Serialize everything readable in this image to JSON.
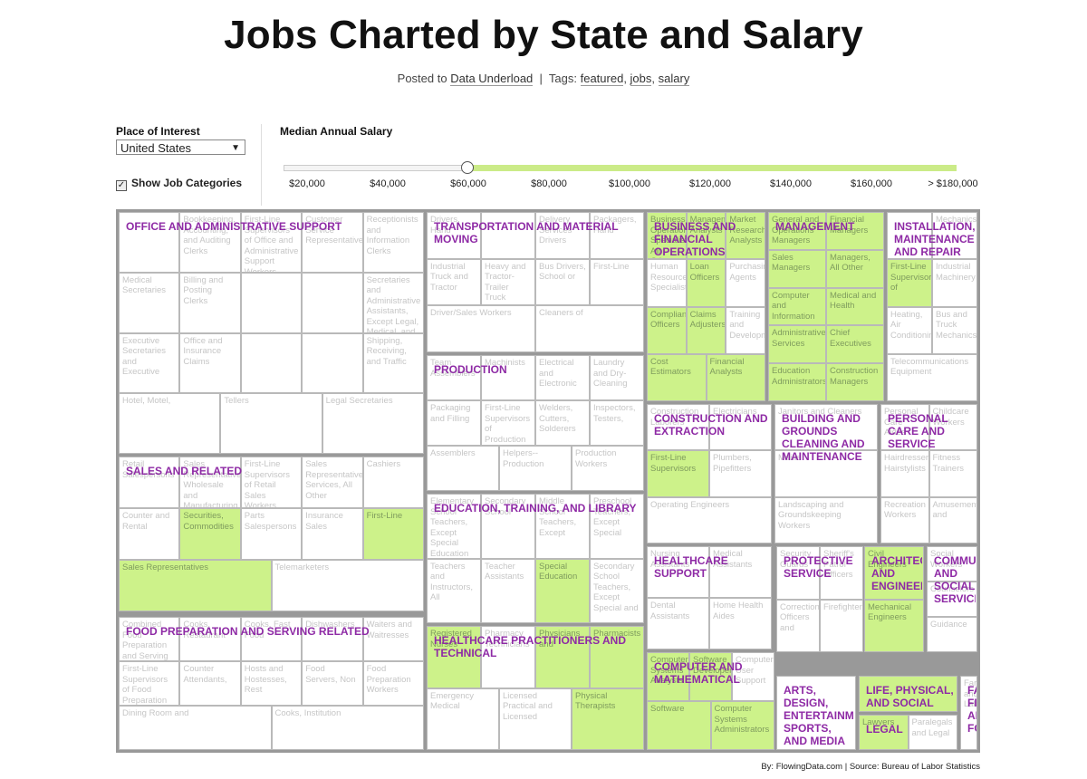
{
  "header": {
    "title": "Jobs Charted by State and Salary",
    "posted_prefix": "Posted to",
    "posted_link": "Data Underload",
    "separator": "|",
    "tags_prefix": "Tags:",
    "tags": [
      "featured",
      "salary"
    ],
    "tag_jobs": "jobs"
  },
  "controls": {
    "place_label": "Place of Interest",
    "place_value": "United States",
    "show_categories_label": "Show Job Categories",
    "show_categories_checked": true,
    "salary_label": "Median Annual Salary",
    "slider_value": 60000,
    "ticks": [
      "$20,000",
      "$40,000",
      "$60,000",
      "$80,000",
      "$100,000",
      "$120,000",
      "$140,000",
      "$160,000",
      "> $180,000"
    ]
  },
  "colors": {
    "highlight": "#cdf28a",
    "category_text": "#8e2aa5",
    "border": "#999999"
  },
  "credit": "By: FlowingData.com | Source: Bureau of Labor Statistics",
  "chart_data": {
    "type": "treemap",
    "categories": [
      {
        "name": "Office and Administrative Support",
        "cells": [
          {
            "label": "",
            "hi": false
          },
          {
            "label": "Bookkeeping, Accounting, and Auditing Clerks",
            "hi": false
          },
          {
            "label": "First-Line Supervisors of Office and Administrative Support Workers",
            "hi": false
          },
          {
            "label": "Customer Service Representatives",
            "hi": false
          },
          {
            "label": "Receptionists and Information Clerks",
            "hi": false
          },
          {
            "label": "Medical Secretaries",
            "hi": false
          },
          {
            "label": "Billing and Posting Clerks",
            "hi": false
          },
          {
            "label": "",
            "hi": false
          },
          {
            "label": "",
            "hi": false
          },
          {
            "label": "Secretaries and Administrative Assistants, Except Legal, Medical, and Executive",
            "hi": false
          },
          {
            "label": "Executive Secretaries and Executive",
            "hi": false
          },
          {
            "label": "Office and Insurance Claims",
            "hi": false
          },
          {
            "label": "",
            "hi": false
          },
          {
            "label": "",
            "hi": false
          },
          {
            "label": "Shipping, Receiving, and Traffic",
            "hi": false
          },
          {
            "label": "Hotel, Motel,",
            "hi": false
          },
          {
            "label": "Tellers",
            "hi": false
          },
          {
            "label": "Legal Secretaries",
            "hi": false
          }
        ]
      },
      {
        "name": "Transportation and Material Moving",
        "cells": [
          {
            "label": "Drivers, Hand",
            "hi": false
          },
          {
            "label": "",
            "hi": false
          },
          {
            "label": "Delivery Services Drivers",
            "hi": false
          },
          {
            "label": "Packagers, Hand",
            "hi": false
          },
          {
            "label": "Industrial Truck and Tractor",
            "hi": false
          },
          {
            "label": "Heavy and Tractor-Trailer Truck Drivers",
            "hi": false
          },
          {
            "label": "Bus Drivers, School or",
            "hi": false
          },
          {
            "label": "First-Line",
            "hi": false
          },
          {
            "label": "Driver/Sales Workers",
            "hi": false
          },
          {
            "label": "Cleaners of",
            "hi": false
          }
        ]
      },
      {
        "name": "Business and Financial Operations",
        "cells": [
          {
            "label": "Business Operations Specialists, All Other",
            "hi": true
          },
          {
            "label": "Management Analysts",
            "hi": true
          },
          {
            "label": "Market Research Analysts",
            "hi": true
          },
          {
            "label": "Human Resources Specialists",
            "hi": false
          },
          {
            "label": "Loan Officers",
            "hi": true
          },
          {
            "label": "Purchasing Agents",
            "hi": false
          },
          {
            "label": "Compliance Officers",
            "hi": true
          },
          {
            "label": "Claims Adjusters",
            "hi": true
          },
          {
            "label": "Training and Development",
            "hi": false
          },
          {
            "label": "Cost Estimators",
            "hi": true
          },
          {
            "label": "Financial Analysts",
            "hi": true
          }
        ]
      },
      {
        "name": "Management",
        "cells": [
          {
            "label": "General and Operations Managers",
            "hi": true
          },
          {
            "label": "Financial Managers",
            "hi": true
          },
          {
            "label": "Sales Managers",
            "hi": true
          },
          {
            "label": "Managers, All Other",
            "hi": true
          },
          {
            "label": "Computer and Information",
            "hi": true
          },
          {
            "label": "Medical and Health",
            "hi": true
          },
          {
            "label": "Administrative Services",
            "hi": true
          },
          {
            "label": "Chief Executives",
            "hi": true
          },
          {
            "label": "Education Administrators",
            "hi": true
          },
          {
            "label": "Construction Managers",
            "hi": true
          }
        ]
      },
      {
        "name": "Installation, Maintenance and Repair",
        "cells": [
          {
            "label": "",
            "hi": false
          },
          {
            "label": "Mechanics",
            "hi": false
          },
          {
            "label": "First-Line Supervisors of",
            "hi": true
          },
          {
            "label": "Industrial Machinery",
            "hi": false
          },
          {
            "label": "Heating, Air Conditioning",
            "hi": false
          },
          {
            "label": "Bus and Truck Mechanics",
            "hi": false
          },
          {
            "label": "Telecommunications Equipment",
            "hi": false
          }
        ]
      },
      {
        "name": "Sales and Related",
        "cells": [
          {
            "label": "Retail Salespersons",
            "hi": false
          },
          {
            "label": "Sales Representatives, Wholesale and Manufacturing, Except Technical and",
            "hi": false
          },
          {
            "label": "First-Line Supervisors of Retail Sales Workers",
            "hi": false
          },
          {
            "label": "Sales Representatives, Services, All Other",
            "hi": false
          },
          {
            "label": "Cashiers",
            "hi": false
          },
          {
            "label": "Counter and Rental",
            "hi": false
          },
          {
            "label": "Securities, Commodities",
            "hi": true
          },
          {
            "label": "Parts Salespersons",
            "hi": false
          },
          {
            "label": "Insurance Sales",
            "hi": false
          },
          {
            "label": "First-Line",
            "hi": true
          },
          {
            "label": "Sales Representatives",
            "hi": true
          },
          {
            "label": "Telemarketers",
            "hi": false
          }
        ]
      },
      {
        "name": "Food Preparation and Serving Related",
        "cells": [
          {
            "label": "Combined Food Preparation and Serving Workers, Including Fast Food",
            "hi": false
          },
          {
            "label": "Cooks, Restaurant",
            "hi": false
          },
          {
            "label": "Cooks, Fast Food",
            "hi": false
          },
          {
            "label": "Dishwashers",
            "hi": false
          },
          {
            "label": "Waiters and Waitresses",
            "hi": false
          },
          {
            "label": "First-Line Supervisors of Food Preparation",
            "hi": false
          },
          {
            "label": "Counter Attendants,",
            "hi": false
          },
          {
            "label": "Hosts and Hostesses, Rest",
            "hi": false
          },
          {
            "label": "Food Servers, Non",
            "hi": false
          },
          {
            "label": "Food Preparation Workers",
            "hi": false
          },
          {
            "label": "Dining Room and",
            "hi": false
          },
          {
            "label": "Cooks, Institution",
            "hi": false
          }
        ]
      },
      {
        "name": "Production",
        "cells": [
          {
            "label": "Team Assemblers",
            "hi": false
          },
          {
            "label": "Machinists",
            "hi": false
          },
          {
            "label": "Electrical and Electronic",
            "hi": false
          },
          {
            "label": "Laundry and Dry-Cleaning",
            "hi": false
          },
          {
            "label": "Packaging and Filling",
            "hi": false
          },
          {
            "label": "First-Line Supervisors of Production",
            "hi": false
          },
          {
            "label": "Welders, Cutters, Solderers",
            "hi": false
          },
          {
            "label": "Inspectors, Testers,",
            "hi": false
          },
          {
            "label": "Assemblers",
            "hi": false
          },
          {
            "label": "Helpers--Production",
            "hi": false
          },
          {
            "label": "Production Workers",
            "hi": false
          }
        ]
      },
      {
        "name": "Construction and Extraction",
        "cells": [
          {
            "label": "Construction Laborers",
            "hi": false
          },
          {
            "label": "Electricians",
            "hi": false
          },
          {
            "label": "First-Line Supervisors",
            "hi": true
          },
          {
            "label": "Plumbers, Pipefitters",
            "hi": false
          },
          {
            "label": "Operating Engineers",
            "hi": false
          }
        ]
      },
      {
        "name": "Building and Grounds Cleaning and Maintenance",
        "cells": [
          {
            "label": "Janitors and Cleaners",
            "hi": false
          },
          {
            "label": "Maids",
            "hi": false
          },
          {
            "label": "Landscaping and Groundskeeping Workers",
            "hi": false
          }
        ]
      },
      {
        "name": "Personal Care and Service",
        "cells": [
          {
            "label": "Personal Care Aides",
            "hi": false
          },
          {
            "label": "Childcare Workers",
            "hi": false
          },
          {
            "label": "Hairdressers, Hairstylists",
            "hi": false
          },
          {
            "label": "Fitness Trainers",
            "hi": false
          },
          {
            "label": "Recreation Workers",
            "hi": false
          },
          {
            "label": "Amusement and",
            "hi": false
          }
        ]
      },
      {
        "name": "Education, Training, and Library",
        "cells": [
          {
            "label": "Elementary School Teachers, Except Special Education",
            "hi": false
          },
          {
            "label": "Secondary School",
            "hi": false
          },
          {
            "label": "Middle School Teachers, Except",
            "hi": false
          },
          {
            "label": "Preschool Teachers, Except Special",
            "hi": false
          },
          {
            "label": "Teachers and Instructors, All",
            "hi": false
          },
          {
            "label": "Teacher Assistants",
            "hi": false
          },
          {
            "label": "Special Education",
            "hi": true
          },
          {
            "label": "Secondary School Teachers, Except Special and",
            "hi": false
          }
        ]
      },
      {
        "name": "Healthcare Support",
        "cells": [
          {
            "label": "Nursing Assistants",
            "hi": false
          },
          {
            "label": "Medical Assistants",
            "hi": false
          },
          {
            "label": "Dental Assistants",
            "hi": false
          },
          {
            "label": "Home Health Aides",
            "hi": false
          }
        ]
      },
      {
        "name": "Protective Service",
        "cells": [
          {
            "label": "Security Guards",
            "hi": false
          },
          {
            "label": "Sheriff's Patrol Officers",
            "hi": false
          },
          {
            "label": "Correctional Officers and",
            "hi": false
          },
          {
            "label": "Firefighters",
            "hi": false
          }
        ]
      },
      {
        "name": "Architecture and Engineering",
        "cells": [
          {
            "label": "Civil Engineers",
            "hi": true
          },
          {
            "label": "Mechanical Engineers",
            "hi": true
          }
        ]
      },
      {
        "name": "Community and Social Service",
        "cells": [
          {
            "label": "Social Workers",
            "hi": false
          },
          {
            "label": "Counselors",
            "hi": false
          },
          {
            "label": "Guidance",
            "hi": false
          }
        ]
      },
      {
        "name": "Healthcare Practitioners and Technical",
        "cells": [
          {
            "label": "Registered Nurses",
            "hi": true
          },
          {
            "label": "Pharmacy Technicians",
            "hi": false
          },
          {
            "label": "Physicians and",
            "hi": true
          },
          {
            "label": "Pharmacists",
            "hi": true
          },
          {
            "label": "Emergency Medical",
            "hi": false
          },
          {
            "label": "Licensed Practical and Licensed",
            "hi": false
          },
          {
            "label": "Physical Therapists",
            "hi": true
          }
        ]
      },
      {
        "name": "Computer and Mathematical",
        "cells": [
          {
            "label": "Computer Systems Analysts",
            "hi": true
          },
          {
            "label": "Software Developers",
            "hi": true
          },
          {
            "label": "Computer User Support",
            "hi": false
          },
          {
            "label": "Software",
            "hi": true
          },
          {
            "label": "Computer Systems Administrators",
            "hi": true
          }
        ]
      },
      {
        "name": "Arts, Design, Entertainment, Sports, and Media",
        "cells": [
          {
            "label": "",
            "hi": false
          }
        ]
      },
      {
        "name": "Life, Physical, and Social Science",
        "cells": [
          {
            "label": "",
            "hi": true
          }
        ]
      },
      {
        "name": "Legal",
        "cells": [
          {
            "label": "Lawyers",
            "hi": true
          },
          {
            "label": "Paralegals and Legal",
            "hi": false
          }
        ]
      },
      {
        "name": "Farming, Fishing, and Forestry",
        "cells": [
          {
            "label": "Farmworkers and Laborers",
            "hi": false
          }
        ]
      }
    ]
  }
}
